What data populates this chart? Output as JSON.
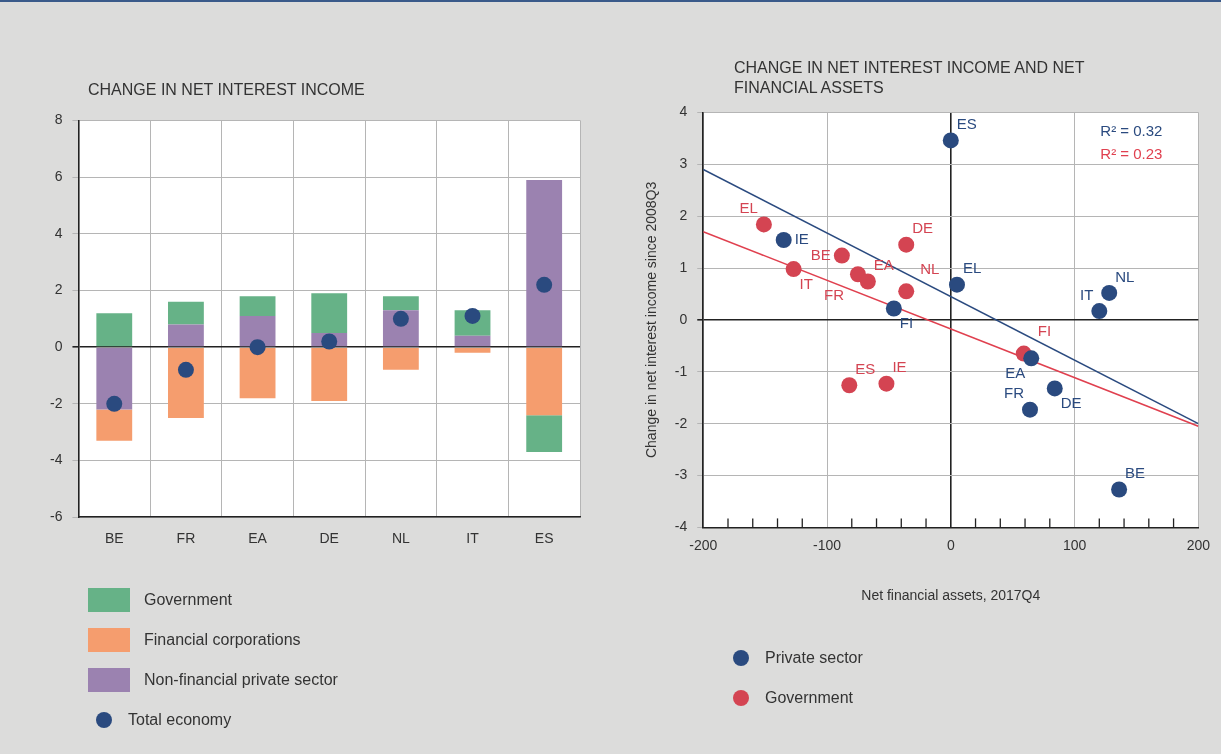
{
  "chart_data": [
    {
      "type": "bar",
      "title": "CHANGE IN NET INTEREST INCOME",
      "categories": [
        "BE",
        "FR",
        "EA",
        "DE",
        "NL",
        "IT",
        "ES"
      ],
      "stacked": true,
      "series": [
        {
          "name": "Non-financial private sector",
          "color": "#9b82b0",
          "values": [
            -2.2,
            0.8,
            1.1,
            0.5,
            1.3,
            0.4,
            5.9
          ]
        },
        {
          "name": "Financial corporations",
          "color": "#f59d6e",
          "values": [
            -1.1,
            -2.5,
            -1.8,
            -1.9,
            -0.8,
            -0.2,
            -2.4
          ]
        },
        {
          "name": "Government",
          "color": "#66b287",
          "values": [
            1.2,
            0.8,
            0.7,
            1.4,
            0.5,
            0.9,
            -1.3
          ]
        },
        {
          "name": "Total economy",
          "type": "scatter",
          "color": "#2a4a7f",
          "x": [
            "BE",
            "FR",
            "EA",
            "DE",
            "NL",
            "IT",
            "ES"
          ],
          "values": [
            -2.0,
            -0.8,
            0.0,
            0.2,
            1.0,
            1.1,
            2.2
          ]
        }
      ],
      "ylim": [
        -6,
        8
      ],
      "yticks": [
        -6,
        -4,
        -2,
        0,
        2,
        4,
        6,
        8
      ],
      "grid": true,
      "legend": "bottom",
      "marker": "circle"
    },
    {
      "type": "scatter",
      "title": "CHANGE IN NET INTEREST INCOME AND NET FINANCIAL ASSETS",
      "xlabel": "Net financial assets, 2017Q4",
      "ylabel": "Change in net interest income since 2008Q3",
      "series": [
        {
          "type": "line",
          "color": "#2a4a7f",
          "marker": "none",
          "x": [
            -200,
            200
          ],
          "values": [
            2.9,
            -2.0
          ]
        },
        {
          "type": "line",
          "color": "#e0404f",
          "marker": "none",
          "x": [
            -200,
            200
          ],
          "values": [
            1.7,
            -2.05
          ]
        },
        {
          "name": "Private sector",
          "color": "#2a4a7f",
          "x": [
            0,
            -135,
            -46,
            5,
            120,
            128,
            65,
            84,
            64,
            136
          ],
          "values": [
            3.46,
            1.54,
            0.22,
            0.68,
            0.17,
            0.52,
            -0.74,
            -1.32,
            -1.73,
            -3.27
          ],
          "value_labels": [
            "ES",
            "IE",
            "FI",
            "EL",
            "IT",
            "NL",
            "EA",
            "DE",
            "FR",
            "BE"
          ]
        },
        {
          "name": "Government",
          "color": "#d44452",
          "x": [
            -151,
            -127,
            -88,
            -75,
            -67,
            -36,
            -36,
            59,
            -82,
            -52
          ],
          "values": [
            1.84,
            0.98,
            1.24,
            0.88,
            0.74,
            1.45,
            0.55,
            -0.65,
            -1.26,
            -1.23
          ],
          "value_labels": [
            "EL",
            "IT",
            "BE",
            "FR",
            "EA",
            "DE",
            "NL",
            "FI",
            "ES",
            "IE"
          ]
        }
      ],
      "annotations": [
        "R² = 0.32",
        "R² = 0.23"
      ],
      "xlim": [
        -200,
        200
      ],
      "xticks": [
        -200,
        {
          "value": -180,
          "label": null
        },
        {
          "value": -160,
          "label": null
        },
        {
          "value": -140,
          "label": null
        },
        {
          "value": -120,
          "label": null
        },
        -100,
        {
          "value": -80,
          "label": null
        },
        {
          "value": -60,
          "label": null
        },
        {
          "value": -40,
          "label": null
        },
        {
          "value": -20,
          "label": null
        },
        0,
        {
          "value": 20,
          "label": null
        },
        {
          "value": 40,
          "label": null
        },
        {
          "value": 60,
          "label": null
        },
        {
          "value": 80,
          "label": null
        },
        100,
        {
          "value": 120,
          "label": null
        },
        {
          "value": 140,
          "label": null
        },
        {
          "value": 160,
          "label": null
        },
        {
          "value": 180,
          "label": null
        },
        200
      ],
      "ylim": [
        -4,
        4
      ],
      "yticks": [
        -4,
        -3,
        -2,
        -1,
        0,
        1,
        2,
        3,
        4
      ],
      "grid": true,
      "legend": "bottom",
      "marker": "circle",
      "line_style": "solid"
    }
  ]
}
